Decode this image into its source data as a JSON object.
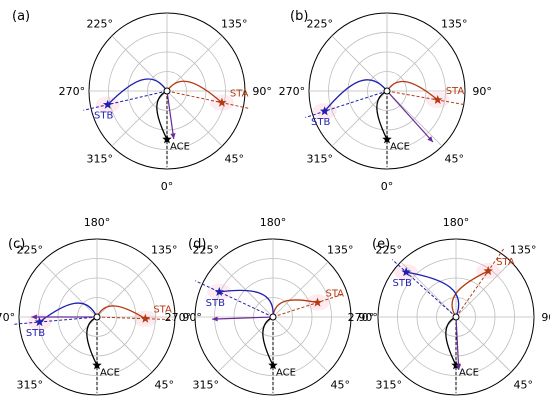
{
  "angle_labels": [
    "180°",
    "135°",
    "90°",
    "45°",
    "0°",
    "315°",
    "270°",
    "225°"
  ],
  "craft_colors": {
    "ACE": "#000000",
    "STA": "#b53a12",
    "STB": "#1f1fb0",
    "arrow": "#6a2a9a"
  },
  "panels": [
    {
      "label": "(a)",
      "STA": {
        "text": "STA",
        "angle": 78,
        "r": 0.72
      },
      "STB": {
        "text": "STB",
        "angle": 283,
        "r": 0.78
      },
      "ACE": {
        "text": "ACE",
        "angle": 0,
        "r": 0.62
      },
      "arrow": {
        "angle": 8,
        "r": 0.62
      }
    },
    {
      "label": "(b)",
      "STA": {
        "text": "STA",
        "angle": 80,
        "r": 0.66
      },
      "STB": {
        "text": "STB",
        "angle": 288,
        "r": 0.84
      },
      "ACE": {
        "text": "ACE",
        "angle": 0,
        "r": 0.62
      },
      "arrow": {
        "angle": 42,
        "r": 0.88
      }
    },
    {
      "label": "(c)",
      "STA": {
        "text": "STA",
        "angle": 88,
        "r": 0.62
      },
      "STB": {
        "text": "STB",
        "angle": 275,
        "r": 0.74
      },
      "ACE": {
        "text": "ACE",
        "angle": 0,
        "r": 0.62
      },
      "arrow": {
        "angle": 270,
        "r": 0.84
      }
    },
    {
      "label": "(d)",
      "STA": {
        "text": "STA",
        "angle": 108,
        "r": 0.6
      },
      "STB": {
        "text": "STB",
        "angle": 245,
        "r": 0.76
      },
      "ACE": {
        "text": "ACE",
        "angle": 0,
        "r": 0.62
      },
      "arrow": {
        "angle": 272,
        "r": 0.78
      }
    },
    {
      "label": "(e)",
      "STA": {
        "text": "STA",
        "angle": 145,
        "r": 0.72
      },
      "STB": {
        "text": "STB",
        "angle": 228,
        "r": 0.86
      },
      "ACE": {
        "text": "ACE",
        "angle": 0,
        "r": 0.62
      },
      "arrow": {
        "angle": 3,
        "r": 0.68
      }
    }
  ]
}
